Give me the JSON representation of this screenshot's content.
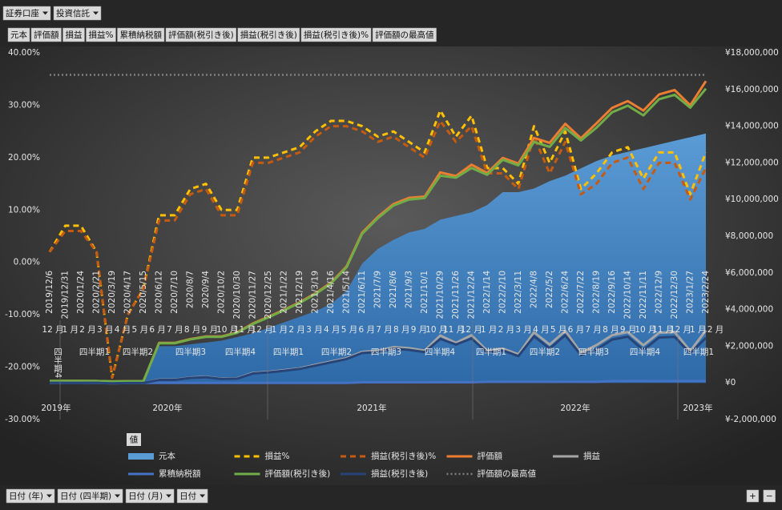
{
  "filters": [
    "証券口座",
    "投資信託"
  ],
  "value_fields": [
    "元本",
    "評価額",
    "損益",
    "損益%",
    "累積納税額",
    "評価額(税引き後)",
    "損益(税引き後)",
    "損益(税引き後)%",
    "評価額の最高値"
  ],
  "values_label": "値",
  "axis_fields": [
    "日付 (年)",
    "日付 (四半期)",
    "日付 (月)",
    "日付"
  ],
  "zoom": [
    "+",
    "−"
  ],
  "chart_data": {
    "type": "line",
    "categories": [
      "2019/12/6",
      "2019/12/31",
      "2020/1/24",
      "2020/2/21",
      "2020/3/19",
      "2020/4/17",
      "2020/5/15",
      "2020/6/12",
      "2020/7/10",
      "2020/8/7",
      "2020/9/4",
      "2020/10/2",
      "2020/10/30",
      "2020/11/27",
      "2020/12/25",
      "2021/1/22",
      "2021/2/19",
      "2021/3/19",
      "2021/4/16",
      "2021/5/14",
      "2021/6/11",
      "2021/7/9",
      "2021/8/6",
      "2021/9/3",
      "2021/10/1",
      "2021/10/29",
      "2021/11/26",
      "2021/12/24",
      "2022/1/14",
      "2022/2/10",
      "2022/3/11",
      "2022/4/8",
      "2022/5/2",
      "2022/6/24",
      "2022/7/22",
      "2022/8/19",
      "2022/9/16",
      "2022/10/14",
      "2022/11/11",
      "2022/12/9",
      "2022/12/30",
      "2023/1/27",
      "2023/2/24"
    ],
    "months": [
      "12 月",
      "1 月",
      "2 月",
      "3 月",
      "4 月",
      "5 月",
      "6 月",
      "7 月",
      "8 月",
      "9 月",
      "10 月",
      "11 月",
      "12 月",
      "1 月",
      "2 月",
      "3 月",
      "4 月",
      "5 月",
      "6 月",
      "7 月",
      "8 月",
      "9 月",
      "10 月",
      "11 月",
      "12 月",
      "1 月",
      "2 月",
      "3 月",
      "4 月",
      "5 月",
      "6 月",
      "7 月",
      "8 月",
      "9 月",
      "10 月",
      "11 月",
      "12 月",
      "1 月",
      "2 月"
    ],
    "quarters": [
      "四半期4",
      "四半期1",
      "四半期2",
      "四半期3",
      "四半期4",
      "四半期1",
      "四半期2",
      "四半期3",
      "四半期4",
      "四半期1",
      "四半期2",
      "四半期3",
      "四半期4",
      "四半期1"
    ],
    "years": [
      "2019年",
      "2020年",
      "2021年",
      "2022年",
      "2023年"
    ],
    "ylim": [
      -30,
      40
    ],
    "yticks": [
      {
        "value": -30,
        "label": "-30.00%"
      },
      {
        "value": -20,
        "label": "-20.00%"
      },
      {
        "value": -10,
        "label": "-10.00%"
      },
      {
        "value": 0,
        "label": "0.00%"
      },
      {
        "value": 10,
        "label": "10.00%"
      },
      {
        "value": 20,
        "label": "20.00%"
      },
      {
        "value": 30,
        "label": "30.00%"
      },
      {
        "value": 40,
        "label": "40.00%"
      }
    ],
    "y2lim": [
      -2000000,
      18000000
    ],
    "y2ticks": [
      {
        "value": -2000000,
        "label": "¥-2,000,000"
      },
      {
        "value": 0,
        "label": "¥0"
      },
      {
        "value": 2000000,
        "label": "¥2,000,000"
      },
      {
        "value": 4000000,
        "label": "¥4,000,000"
      },
      {
        "value": 6000000,
        "label": "¥6,000,000"
      },
      {
        "value": 8000000,
        "label": "¥8,000,000"
      },
      {
        "value": 10000000,
        "label": "¥10,000,000"
      },
      {
        "value": 12000000,
        "label": "¥12,000,000"
      },
      {
        "value": 14000000,
        "label": "¥14,000,000"
      },
      {
        "value": 16000000,
        "label": "¥16,000,000"
      },
      {
        "value": 18000000,
        "label": "¥18,000,000"
      }
    ],
    "grid": false,
    "legend": "bottom",
    "series": [
      {
        "name": "元本",
        "color": "#5b9bd5",
        "style": "area",
        "axis": "y2",
        "values": [
          100000,
          100000,
          100000,
          100000,
          100000,
          100000,
          100000,
          2000000,
          2000000,
          2100000,
          2200000,
          2300000,
          2500000,
          2700000,
          3000000,
          3300000,
          3600000,
          3900000,
          4300000,
          5000000,
          6500000,
          7300000,
          7800000,
          8200000,
          8400000,
          8900000,
          9100000,
          9300000,
          9700000,
          10400000,
          10400000,
          10600000,
          11000000,
          11300000,
          11700000,
          12100000,
          12400000,
          12600000,
          12800000,
          13000000,
          13200000,
          13400000,
          13600000
        ]
      },
      {
        "name": "損益%",
        "color": "#ffc000",
        "style": "dashed",
        "values": [
          2,
          7,
          7,
          2,
          -22,
          -10,
          -5,
          9,
          9,
          14,
          15,
          10,
          10,
          20,
          20,
          21,
          22,
          25,
          27,
          27,
          26,
          24,
          25,
          23,
          21,
          29,
          24,
          28,
          18,
          18,
          15,
          26,
          19,
          25,
          14,
          17,
          21,
          22,
          16,
          21,
          21,
          13,
          21
        ]
      },
      {
        "name": "損益(税引き後)%",
        "color": "#c55a11",
        "style": "dashed",
        "values": [
          2,
          6,
          6,
          2,
          -22,
          -10,
          -5,
          8,
          8,
          13,
          14,
          9,
          9,
          19,
          19,
          20,
          21,
          24,
          26,
          26,
          25,
          23,
          24,
          22,
          20,
          27,
          23,
          26,
          17,
          17,
          14,
          24,
          17,
          23,
          13,
          15,
          19,
          20,
          14,
          19,
          19,
          12,
          18
        ]
      },
      {
        "name": "評価額",
        "color": "#ed7d31",
        "style": "solid",
        "axis": "y2",
        "values": [
          102000,
          107000,
          107000,
          102000,
          78000,
          90000,
          95000,
          2180000,
          2180000,
          2390000,
          2530000,
          2530000,
          2750000,
          3240000,
          3600000,
          3990000,
          4390000,
          4880000,
          5460000,
          6350000,
          8190000,
          9050000,
          9750000,
          10090000,
          10160000,
          11480000,
          11280000,
          11900000,
          11450000,
          12270000,
          11960000,
          13360000,
          13090000,
          14130000,
          13340000,
          14160000,
          15000000,
          15370000,
          14850000,
          15730000,
          15970000,
          15140000,
          16460000
        ]
      },
      {
        "name": "損益",
        "color": "#a5a5a5",
        "style": "solid",
        "axis": "y2",
        "values": [
          2000,
          7000,
          7000,
          2000,
          -22000,
          -10000,
          -5000,
          180000,
          180000,
          290000,
          330000,
          230000,
          250000,
          540000,
          600000,
          690000,
          790000,
          980000,
          1160000,
          1350000,
          1690000,
          1750000,
          1950000,
          1890000,
          1760000,
          2580000,
          2180000,
          2600000,
          1750000,
          1870000,
          1560000,
          2760000,
          2090000,
          2830000,
          1640000,
          2060000,
          2600000,
          2770000,
          2050000,
          2730000,
          2770000,
          1740000,
          2860000
        ]
      },
      {
        "name": "累積納税額",
        "color": "#4472c4",
        "style": "solid",
        "axis": "y2",
        "values": [
          0,
          0,
          0,
          0,
          0,
          0,
          0,
          0,
          0,
          0,
          0,
          0,
          0,
          0,
          0,
          0,
          0,
          0,
          0,
          0,
          30000,
          30000,
          30000,
          30000,
          30000,
          30000,
          30000,
          30000,
          60000,
          60000,
          60000,
          60000,
          60000,
          60000,
          60000,
          60000,
          100000,
          100000,
          100000,
          100000,
          100000,
          100000,
          100000
        ]
      },
      {
        "name": "評価額(税引き後)",
        "color": "#70ad47",
        "style": "solid",
        "axis": "y2",
        "values": [
          102000,
          106000,
          106000,
          102000,
          78000,
          90000,
          95000,
          2160000,
          2160000,
          2370000,
          2510000,
          2510000,
          2730000,
          3210000,
          3570000,
          3960000,
          4360000,
          4840000,
          5420000,
          6300000,
          8130000,
          8980000,
          9670000,
          10000000,
          10080000,
          11300000,
          11190000,
          11720000,
          11350000,
          12170000,
          11860000,
          13140000,
          12870000,
          13900000,
          13220000,
          13920000,
          14760000,
          15120000,
          14590000,
          15470000,
          15710000,
          15010000,
          16050000
        ]
      },
      {
        "name": "損益(税引き後)",
        "color": "#264478",
        "style": "solid",
        "axis": "y2",
        "values": [
          2000,
          6000,
          6000,
          2000,
          -22000,
          -10000,
          -5000,
          160000,
          160000,
          270000,
          310000,
          210000,
          230000,
          510000,
          570000,
          660000,
          760000,
          940000,
          1120000,
          1300000,
          1630000,
          1680000,
          1870000,
          1800000,
          1680000,
          2400000,
          2090000,
          2420000,
          1650000,
          1770000,
          1460000,
          2540000,
          1870000,
          2600000,
          1520000,
          1820000,
          2360000,
          2520000,
          1790000,
          2470000,
          2510000,
          1610000,
          2450000
        ]
      },
      {
        "name": "評価額の最高値",
        "color": "#7f7f7f",
        "style": "dotted",
        "axis": "y2",
        "values": [
          16800000,
          16800000,
          16800000,
          16800000,
          16800000,
          16800000,
          16800000,
          16800000,
          16800000,
          16800000,
          16800000,
          16800000,
          16800000,
          16800000,
          16800000,
          16800000,
          16800000,
          16800000,
          16800000,
          16800000,
          16800000,
          16800000,
          16800000,
          16800000,
          16800000,
          16800000,
          16800000,
          16800000,
          16800000,
          16800000,
          16800000,
          16800000,
          16800000,
          16800000,
          16800000,
          16800000,
          16800000,
          16800000,
          16800000,
          16800000,
          16800000,
          16800000,
          16800000
        ]
      }
    ]
  }
}
